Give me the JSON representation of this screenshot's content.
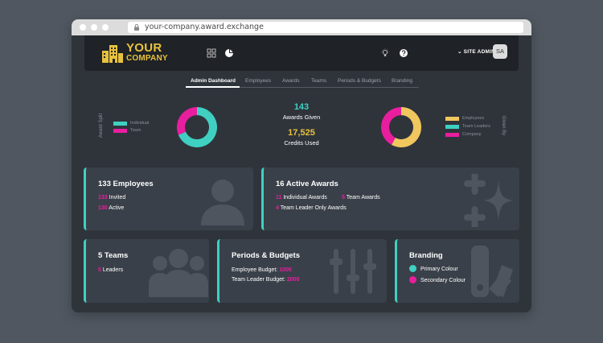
{
  "browser": {
    "url": "your-company.award.exchange"
  },
  "header": {
    "logo_line1": "YOUR",
    "logo_line2": "COMPANY",
    "user_menu_label": "SITE ADMIN",
    "avatar_initials": "SA"
  },
  "tabs": [
    {
      "label": "Admin Dashboard",
      "active": true
    },
    {
      "label": "Employees"
    },
    {
      "label": "Awards"
    },
    {
      "label": "Teams"
    },
    {
      "label": "Periods & Budgets"
    },
    {
      "label": "Branding"
    }
  ],
  "summary": {
    "awards_given": "143",
    "awards_given_label": "Awards Given",
    "credits_used": "17,525",
    "credits_used_label": "Credits Used"
  },
  "award_split": {
    "label": "Award Split",
    "legend": [
      {
        "name": "Individual",
        "color": "#3fd0c2"
      },
      {
        "name": "Team",
        "color": "#e91e9f"
      }
    ],
    "values": [
      11,
      5
    ]
  },
  "given_by": {
    "label": "Given By",
    "legend": [
      {
        "name": "Employees",
        "color": "#f0c75e"
      },
      {
        "name": "Team Leaders",
        "color": "#3fd0c2"
      },
      {
        "name": "Company",
        "color": "#e91e9f"
      }
    ],
    "values": [
      58,
      0,
      42
    ]
  },
  "cards": {
    "employees": {
      "title": "133 Employees",
      "invited_num": "133",
      "invited_label": "Invited",
      "active_num": "130",
      "active_label": "Active"
    },
    "awards": {
      "title": "16 Active Awards",
      "individual_num": "11",
      "individual_label": "Individual Awards",
      "team_num": "5",
      "team_label": "Team Awards",
      "leader_num": "4",
      "leader_label": "Team Leader Only Awards"
    },
    "teams": {
      "title": "5 Teams",
      "leaders_num": "5",
      "leaders_label": "Leaders"
    },
    "periods": {
      "title": "Periods & Budgets",
      "emp_label": "Employee Budget:",
      "emp_value": "1000",
      "leader_label": "Team Leader Budget:",
      "leader_value": "2000"
    },
    "branding": {
      "title": "Branding",
      "primary_label": "Primary Colour",
      "primary_color": "#3fd0c2",
      "secondary_label": "Secondary Colour",
      "secondary_color": "#e91e9f"
    }
  },
  "colors": {
    "accent": "#3fd0c2",
    "secondary": "#e91e9f",
    "brand": "#e8c13c"
  }
}
